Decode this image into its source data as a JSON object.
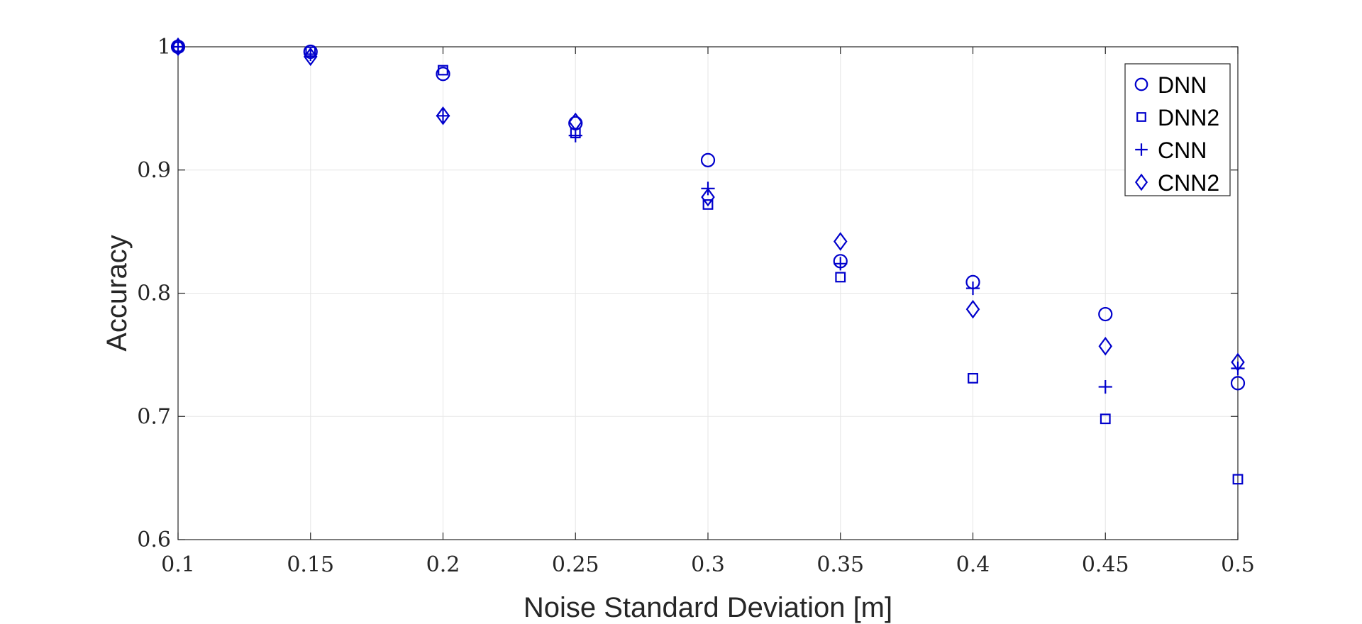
{
  "chart_data": {
    "type": "scatter",
    "title": "",
    "xlabel": "Noise Standard Deviation [m]",
    "ylabel": "Accuracy",
    "xlim": [
      0.1,
      0.5
    ],
    "ylim": [
      0.6,
      1.0
    ],
    "xticks": [
      "0.1",
      "0.15",
      "0.2",
      "0.25",
      "0.3",
      "0.35",
      "0.4",
      "0.45",
      "0.5"
    ],
    "yticks": [
      "0.6",
      "0.7",
      "0.8",
      "0.9",
      "1"
    ],
    "grid": true,
    "legend": {
      "position": "top-right"
    },
    "x": [
      0.1,
      0.15,
      0.2,
      0.25,
      0.3,
      0.35,
      0.4,
      0.45,
      0.5
    ],
    "series": [
      {
        "name": "DNN",
        "marker": "circle",
        "values": [
          1.0,
          0.996,
          0.978,
          0.938,
          0.908,
          0.826,
          0.809,
          0.783,
          0.727
        ]
      },
      {
        "name": "DNN2",
        "marker": "square",
        "values": [
          1.0,
          0.996,
          0.981,
          0.93,
          0.872,
          0.813,
          0.731,
          0.698,
          0.649
        ]
      },
      {
        "name": "CNN",
        "marker": "plus",
        "values": [
          1.0,
          0.994,
          0.944,
          0.928,
          0.885,
          0.824,
          0.804,
          0.724,
          0.739
        ]
      },
      {
        "name": "CNN2",
        "marker": "diamond",
        "values": [
          1.0,
          0.992,
          0.944,
          0.939,
          0.878,
          0.842,
          0.787,
          0.757,
          0.744
        ]
      }
    ],
    "color": "#0000cc"
  }
}
